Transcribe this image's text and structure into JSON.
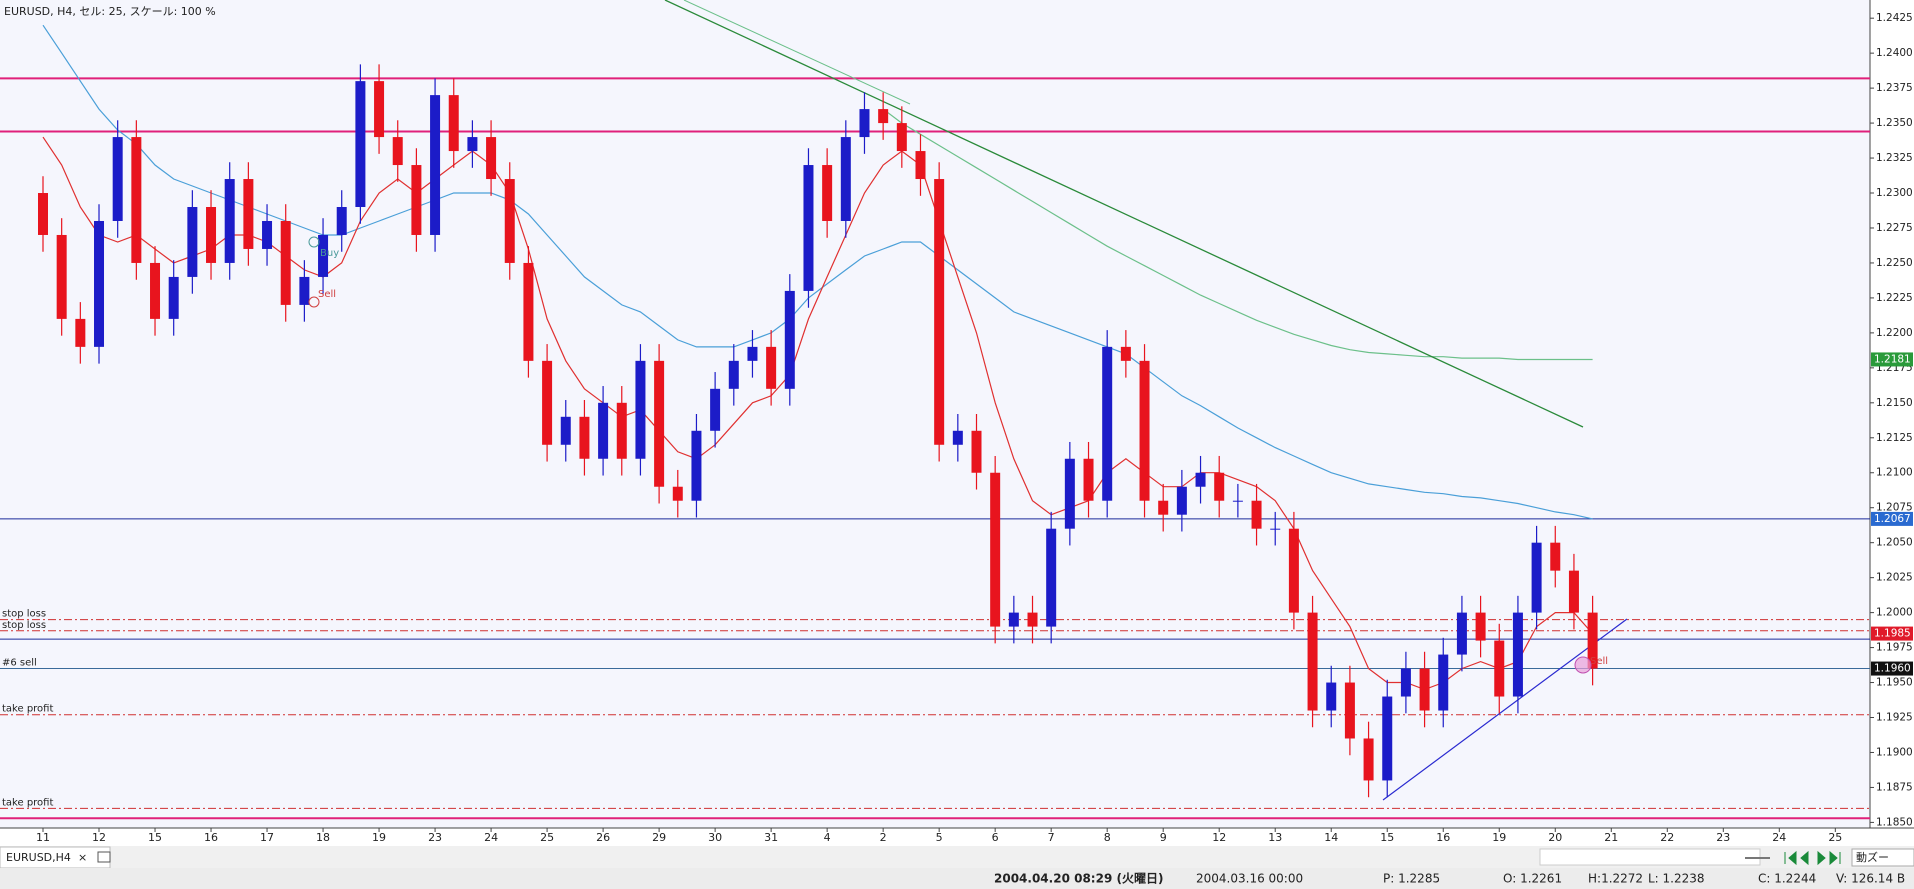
{
  "chart_data": {
    "type": "candlestick",
    "title": "EURUSD, H4, セル: 25, スケール: 100 %",
    "categories": [
      "11",
      null,
      null,
      "12",
      null,
      null,
      "15",
      null,
      null,
      "16",
      null,
      null,
      "17",
      null,
      null,
      "18",
      null,
      null,
      "19",
      null,
      null,
      "23",
      null,
      null,
      "24",
      null,
      null,
      "25",
      null,
      null,
      "26",
      null,
      null,
      "29",
      null,
      null,
      "30",
      null,
      null,
      "31",
      null,
      null,
      "4",
      null,
      null,
      "2",
      null,
      null,
      "5",
      null,
      null,
      "6",
      null,
      null,
      "7",
      null,
      null,
      "8",
      null,
      null,
      "9",
      null,
      null,
      "12",
      null,
      null,
      "13",
      null,
      null,
      "14",
      null,
      null,
      "15",
      null,
      null,
      "16",
      null,
      null,
      "19",
      null,
      null,
      "20",
      null,
      null,
      "21",
      null,
      null,
      "22",
      null,
      null,
      "23",
      null,
      null,
      "24",
      null,
      null,
      "25",
      null,
      null
    ],
    "open": [
      1.23,
      1.227,
      1.221,
      1.219,
      1.228,
      1.234,
      1.225,
      1.221,
      1.224,
      1.229,
      1.225,
      1.231,
      1.226,
      1.228,
      1.222,
      1.224,
      1.227,
      1.229,
      1.238,
      1.234,
      1.232,
      1.227,
      1.237,
      1.233,
      1.234,
      1.231,
      1.225,
      1.218,
      1.212,
      1.214,
      1.211,
      1.215,
      1.211,
      1.218,
      1.209,
      1.208,
      1.213,
      1.216,
      1.218,
      1.219,
      1.216,
      1.223,
      1.232,
      1.228,
      1.234,
      1.236,
      1.235,
      1.233,
      1.231,
      1.212,
      1.213,
      1.21,
      1.199,
      1.2,
      1.199,
      1.206,
      1.211,
      1.208,
      1.219,
      1.218,
      1.208,
      1.207,
      1.209,
      1.21,
      1.208,
      1.208,
      1.206,
      1.206,
      1.2,
      1.193,
      1.195,
      1.191,
      1.188,
      1.194,
      1.196,
      1.193,
      1.197,
      1.2,
      1.198,
      1.194,
      1.2,
      1.205,
      1.203,
      1.2,
      null,
      null,
      null,
      null,
      null,
      null,
      null,
      null,
      null,
      null,
      null,
      null,
      null,
      null,
      null
    ],
    "high": [
      1.2312,
      1.2282,
      1.2222,
      1.2292,
      1.2352,
      1.2352,
      1.2262,
      1.2252,
      1.2302,
      1.2302,
      1.2322,
      1.2322,
      1.2292,
      1.2292,
      1.2252,
      1.2282,
      1.2302,
      1.2392,
      1.2392,
      1.2352,
      1.2332,
      1.2382,
      1.2382,
      1.2352,
      1.2352,
      1.2322,
      1.2262,
      1.2192,
      1.2152,
      1.2152,
      1.2162,
      1.2162,
      1.2192,
      1.2192,
      1.2102,
      1.2142,
      1.2172,
      1.2192,
      1.2202,
      1.2202,
      1.2242,
      1.2332,
      1.2332,
      1.2352,
      1.2372,
      1.2372,
      1.2362,
      1.2342,
      1.2322,
      1.2142,
      1.2142,
      1.2112,
      1.2012,
      1.2012,
      1.2072,
      1.2122,
      1.2122,
      1.2202,
      1.2202,
      1.2192,
      1.2092,
      1.2102,
      1.2112,
      1.2112,
      1.2092,
      1.2092,
      1.2072,
      1.2072,
      1.2012,
      1.1962,
      1.1962,
      1.1922,
      1.1952,
      1.1972,
      1.1972,
      1.1982,
      1.2012,
      1.2012,
      1.1992,
      1.2012,
      1.2062,
      1.2062,
      1.2042,
      1.2012,
      null,
      null,
      null,
      null,
      null,
      null,
      null,
      null,
      null,
      null,
      null,
      null,
      null,
      null,
      null
    ],
    "low": [
      1.2258,
      1.2198,
      1.2178,
      1.2178,
      1.2268,
      1.2238,
      1.2198,
      1.2198,
      1.2228,
      1.2238,
      1.2238,
      1.2248,
      1.2248,
      1.2208,
      1.2208,
      1.2228,
      1.2258,
      1.2278,
      1.2328,
      1.2308,
      1.2258,
      1.2258,
      1.2318,
      1.2318,
      1.2298,
      1.2238,
      1.2168,
      1.2108,
      1.2108,
      1.2098,
      1.2098,
      1.2098,
      1.2098,
      1.2078,
      1.2068,
      1.2068,
      1.2118,
      1.2148,
      1.2168,
      1.2148,
      1.2148,
      1.2218,
      1.2268,
      1.2268,
      1.2328,
      1.2338,
      1.2318,
      1.2298,
      1.2108,
      1.2108,
      1.2088,
      1.1978,
      1.1978,
      1.1978,
      1.1978,
      1.2048,
      1.2068,
      1.2068,
      1.2168,
      1.2068,
      1.2058,
      1.2058,
      1.2078,
      1.2068,
      1.2068,
      1.2048,
      1.2048,
      1.1988,
      1.1918,
      1.1918,
      1.1898,
      1.1868,
      1.1868,
      1.1928,
      1.1918,
      1.1918,
      1.1958,
      1.1968,
      1.1928,
      1.1928,
      1.1988,
      1.2018,
      1.1988,
      1.1948,
      null,
      null,
      null,
      null,
      null,
      null,
      null,
      null,
      null,
      null,
      null,
      null,
      null,
      null,
      null
    ],
    "close": [
      1.227,
      1.221,
      1.219,
      1.228,
      1.234,
      1.225,
      1.221,
      1.224,
      1.229,
      1.225,
      1.231,
      1.226,
      1.228,
      1.222,
      1.224,
      1.227,
      1.229,
      1.238,
      1.234,
      1.232,
      1.227,
      1.237,
      1.233,
      1.234,
      1.231,
      1.225,
      1.218,
      1.212,
      1.214,
      1.211,
      1.215,
      1.211,
      1.218,
      1.209,
      1.208,
      1.213,
      1.216,
      1.218,
      1.219,
      1.216,
      1.223,
      1.232,
      1.228,
      1.234,
      1.236,
      1.235,
      1.233,
      1.231,
      1.212,
      1.213,
      1.21,
      1.199,
      1.2,
      1.199,
      1.206,
      1.211,
      1.208,
      1.219,
      1.218,
      1.208,
      1.207,
      1.209,
      1.21,
      1.208,
      1.208,
      1.206,
      1.206,
      1.2,
      1.193,
      1.195,
      1.191,
      1.188,
      1.194,
      1.196,
      1.193,
      1.197,
      1.2,
      1.198,
      1.194,
      1.2,
      1.205,
      1.203,
      1.2,
      1.196,
      null,
      null,
      null,
      null,
      null,
      null,
      null,
      null,
      null,
      null,
      null,
      null,
      null,
      null,
      null
    ],
    "up_color": "#1c1cc8",
    "down_color": "#e8141e",
    "lines": [
      {
        "color": "#4a9fd8",
        "values": [
          1.242,
          1.24,
          1.238,
          1.236,
          1.2345,
          1.2335,
          1.232,
          1.231,
          1.2305,
          1.23,
          1.2295,
          1.229,
          1.2285,
          1.228,
          1.2275,
          1.227,
          1.227,
          1.2275,
          1.228,
          1.2285,
          1.229,
          1.2295,
          1.23,
          1.23,
          1.23,
          1.2295,
          1.2285,
          1.227,
          1.2255,
          1.224,
          1.223,
          1.222,
          1.2215,
          1.2205,
          1.2195,
          1.219,
          1.219,
          1.219,
          1.2195,
          1.22,
          1.221,
          1.2225,
          1.2235,
          1.2245,
          1.2255,
          1.226,
          1.2265,
          1.2265,
          1.2255,
          1.2245,
          1.2235,
          1.2225,
          1.2215,
          1.221,
          1.2205,
          1.22,
          1.2195,
          1.219,
          1.2185,
          1.2175,
          1.2165,
          1.2155,
          1.2148,
          1.214,
          1.2132,
          1.2125,
          1.2118,
          1.2112,
          1.2106,
          1.21,
          1.2096,
          1.2092,
          1.209,
          1.2088,
          1.2086,
          1.2085,
          1.2083,
          1.2082,
          1.208,
          1.2078,
          1.2075,
          1.2072,
          1.207,
          1.2067,
          null,
          null,
          null,
          null,
          null,
          null,
          null,
          null,
          null,
          null,
          null,
          null,
          null,
          null,
          null
        ]
      },
      {
        "color": "#e03030",
        "values": [
          1.234,
          1.232,
          1.229,
          1.227,
          1.2265,
          1.227,
          1.226,
          1.225,
          1.2255,
          1.226,
          1.227,
          1.227,
          1.2265,
          1.2255,
          1.2245,
          1.224,
          1.225,
          1.228,
          1.23,
          1.231,
          1.23,
          1.231,
          1.232,
          1.233,
          1.232,
          1.23,
          1.226,
          1.221,
          1.218,
          1.216,
          1.215,
          1.214,
          1.2145,
          1.213,
          1.2115,
          1.211,
          1.212,
          1.2135,
          1.215,
          1.2155,
          1.217,
          1.221,
          1.224,
          1.227,
          1.23,
          1.232,
          1.233,
          1.232,
          1.228,
          1.224,
          1.22,
          1.215,
          1.211,
          1.208,
          1.207,
          1.2075,
          1.208,
          1.21,
          1.211,
          1.21,
          1.209,
          1.209,
          1.21,
          1.21,
          1.2095,
          1.209,
          1.208,
          1.206,
          1.203,
          1.201,
          1.199,
          1.196,
          1.195,
          1.195,
          1.1945,
          1.195,
          1.196,
          1.1965,
          1.196,
          1.1965,
          1.199,
          1.2,
          1.2,
          1.1985,
          null,
          null,
          null,
          null,
          null,
          null,
          null,
          null,
          null,
          null,
          null,
          null,
          null,
          null,
          null
        ]
      },
      {
        "color": "#6cc08a",
        "values": [
          null,
          null,
          null,
          null,
          null,
          null,
          null,
          null,
          null,
          null,
          null,
          null,
          null,
          null,
          null,
          null,
          null,
          null,
          null,
          null,
          null,
          null,
          null,
          null,
          null,
          null,
          null,
          null,
          null,
          null,
          null,
          null,
          null,
          null,
          null,
          null,
          null,
          null,
          null,
          null,
          null,
          null,
          null,
          null,
          null,
          1.236,
          1.235,
          1.2342,
          1.2334,
          1.2326,
          1.2318,
          1.231,
          1.2302,
          1.2294,
          1.2286,
          1.2278,
          1.227,
          1.2262,
          1.2255,
          1.2248,
          1.2241,
          1.2234,
          1.2227,
          1.2221,
          1.2215,
          1.2209,
          1.2204,
          1.2199,
          1.2195,
          1.2191,
          1.2188,
          1.2186,
          1.2185,
          1.2184,
          1.2183,
          1.2183,
          1.2182,
          1.2182,
          1.2182,
          1.2181,
          1.2181,
          1.2181,
          1.2181,
          1.2181,
          null,
          null,
          null,
          null,
          null,
          null,
          null,
          null,
          null,
          null,
          null,
          null,
          null,
          null,
          null
        ]
      }
    ],
    "levels": [
      {
        "value": 1.2382,
        "color": "#e0207a",
        "width": 2,
        "dashed": false
      },
      {
        "value": 1.2344,
        "color": "#e0207a",
        "width": 2,
        "dashed": false
      },
      {
        "value": 1.2067,
        "color": "#1a2a9a",
        "width": 1,
        "dashed": false
      },
      {
        "value": 1.1981,
        "color": "#1a2a9a",
        "width": 1,
        "dashed": false
      },
      {
        "value": 1.1995,
        "color": "#d03030",
        "width": 1,
        "dashed": true,
        "label": "stop loss"
      },
      {
        "value": 1.1987,
        "color": "#d03030",
        "width": 1,
        "dashed": true,
        "label": "stop loss"
      },
      {
        "value": 1.196,
        "color": "#3a6a9a",
        "width": 1,
        "dashed": false,
        "label": "#6 sell"
      },
      {
        "value": 1.1927,
        "color": "#d03030",
        "width": 1,
        "dashed": true,
        "label": "take profit"
      },
      {
        "value": 1.186,
        "color": "#d03030",
        "width": 1,
        "dashed": true,
        "label": "take profit"
      },
      {
        "value": 1.1853,
        "color": "#e0207a",
        "width": 2,
        "dashed": false
      }
    ],
    "price_tags": [
      {
        "value": 1.2181,
        "color": "#2a9a3a"
      },
      {
        "value": 1.2067,
        "color": "#2a6ad0"
      },
      {
        "value": 1.1985,
        "color": "#e01a2a"
      },
      {
        "value": 1.196,
        "label": "1.1960",
        "color": "#111111"
      }
    ],
    "annotations": [
      "Sell",
      "Buy",
      "Sell"
    ],
    "ylim": [
      1.1846,
      1.2438
    ],
    "yticks": [
      {
        "value": 1.185,
        "label": "1.1850"
      },
      {
        "value": 1.1875,
        "label": "1.1875"
      },
      {
        "value": 1.19,
        "label": "1.1900"
      },
      {
        "value": 1.1925,
        "label": "1.1925"
      },
      {
        "value": 1.195,
        "label": "1.1950"
      },
      {
        "value": 1.1975,
        "label": "1.1975"
      },
      {
        "value": 1.2,
        "label": "1.2000"
      },
      {
        "value": 1.2025,
        "label": "1.2025"
      },
      {
        "value": 1.205,
        "label": "1.2050"
      },
      {
        "value": 1.2075,
        "label": "1.2075"
      },
      {
        "value": 1.21,
        "label": "1.2100"
      },
      {
        "value": 1.2125,
        "label": "1.2125"
      },
      {
        "value": 1.215,
        "label": "1.2150"
      },
      {
        "value": 1.2175,
        "label": "1.2175"
      },
      {
        "value": 1.22,
        "label": "1.2200"
      },
      {
        "value": 1.2225,
        "label": "1.2225"
      },
      {
        "value": 1.225,
        "label": "1.2250"
      },
      {
        "value": 1.2275,
        "label": "1.2275"
      },
      {
        "value": 1.23,
        "label": "1.2300"
      },
      {
        "value": 1.2325,
        "label": "1.2325"
      },
      {
        "value": 1.235,
        "label": "1.2350"
      },
      {
        "value": 1.2375,
        "label": "1.2375"
      },
      {
        "value": 1.24,
        "label": "1.2400"
      },
      {
        "value": 1.2425,
        "label": "1.2425"
      }
    ],
    "grid": false
  },
  "tab": {
    "label": "EURUSD,H4",
    "close": "×"
  },
  "toolbar_label": "動ズー",
  "status_bar": {
    "time": "2004.04.20 08:29 (火曜日)",
    "bar_time": "2004.03.16 00:00",
    "price": "P: 1.2285",
    "open": "O: 1.2261",
    "high": "H:1.2272",
    "low": "L: 1.2238",
    "close": "C: 1.2244",
    "volume": "V: 126.14 B"
  }
}
